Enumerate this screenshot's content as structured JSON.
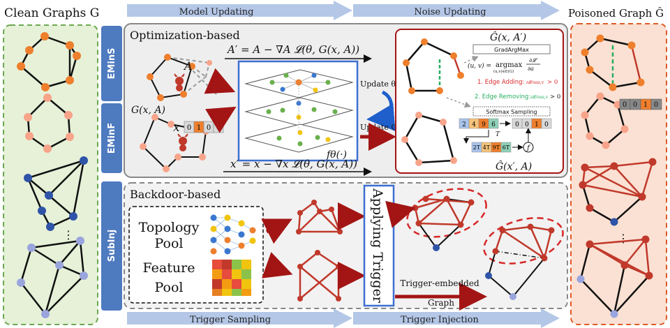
{
  "header": {
    "clean_graphs": "Clean Graphs G",
    "model_updating": "Model Updating",
    "noise_updating": "Noise Updating",
    "poisoned_graph": "Poisoned Graph Ĝ"
  },
  "footer": {
    "trigger_sampling": "Trigger Sampling",
    "trigger_injection": "Trigger Injection"
  },
  "side_tabs": {
    "emins": "EMinS",
    "eminf": "EMinF",
    "subinj": "SubInj"
  },
  "optimization": {
    "title": "Optimization-based",
    "eq_a": "A′ = A − ∇A 𝓛(θ, G(x, A))",
    "eq_x": "x′ = x − ∇x 𝓛(θ, G(x, A))",
    "label_a": "A",
    "label_g": "G(x, A)",
    "label_x": "x",
    "feature_vector": [
      "0",
      "1",
      "0",
      "0"
    ],
    "model_label": "fθ(·)",
    "update_theta": "Update θ",
    "update_g": "Update G"
  },
  "noise_panel": {
    "title_top": "Ĝ(x, A′)",
    "title_bottom": "Ĝ(x′, A)",
    "gradargmax": "GradArgMax",
    "argmax_lhs": "(u, v) =",
    "argmax_op": "argmax",
    "argmax_sub": "(u,v)∈E(G)",
    "argmax_frac_num": "∂𝓛",
    "argmax_frac_den": "∂a",
    "edge_adding": "1. Edge Adding:",
    "edge_removing": "2. Edge Removing:",
    "frac_small": "∂𝓛/∂au,v",
    "gt_zero": "> 0",
    "softmax": "Softmax Sampling",
    "vector_top": [
      "2",
      "4",
      "9",
      "6"
    ],
    "vector_t": [
      "2T",
      "4T",
      "9T",
      "6T"
    ],
    "t_label": "T",
    "onehot": [
      "0",
      "0",
      "1",
      "0"
    ],
    "func": "ƒ"
  },
  "poisoned": {
    "feature_vector": [
      "0",
      "0",
      "1",
      "0"
    ],
    "ellipsis": "⋮"
  },
  "clean": {
    "ellipsis": "⋮"
  },
  "backdoor": {
    "title": "Backdoor-based",
    "topology_pool_1": "Topology",
    "topology_pool_2": "Pool",
    "feature_pool_1": "Feature",
    "feature_pool_2": "Pool",
    "applying_trigger": "Applying Trigger",
    "trigger_embedded_1": "Trigger-embedded",
    "trigger_embedded_2": "Graph"
  },
  "colors": {
    "orange": "#ee7f2d",
    "peach": "#f7a48a",
    "blue": "#2f54a8",
    "lavender": "#9aa5dd",
    "red": "#c0392b",
    "dark_red": "#a31515",
    "green_panel": "#e6f1d8",
    "red_panel": "#fbe1d3",
    "tab_blue": "#4e7abf",
    "arrow_blue": "#b4c7e7"
  }
}
